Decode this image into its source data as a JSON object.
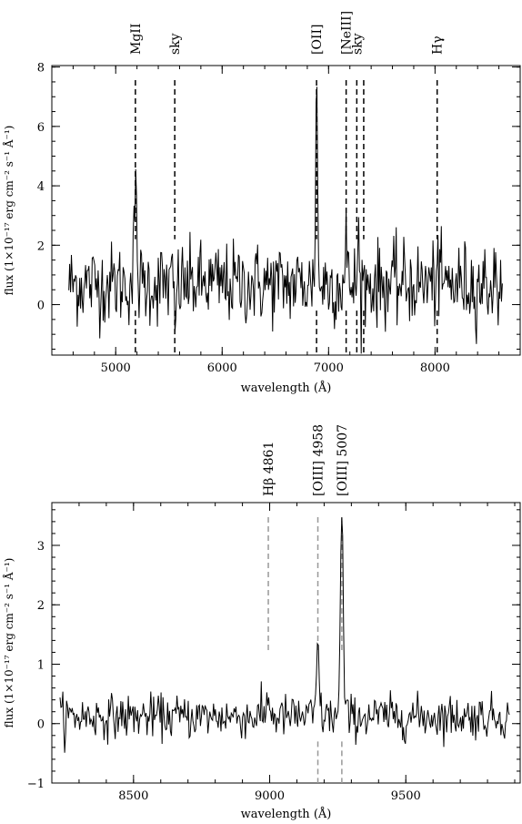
{
  "chart_data": [
    {
      "type": "line",
      "xlabel": "wavelength (Å)",
      "ylabel": "flux (1×10⁻¹⁷ erg cm⁻² s⁻¹ Å⁻¹)",
      "xlim": [
        4400,
        8800
      ],
      "ylim": [
        -1.7,
        8.05
      ],
      "xticks": [
        5000,
        6000,
        7000,
        8000
      ],
      "yticks": [
        0,
        2,
        4,
        6,
        8
      ],
      "minor_x_step": 200,
      "minor_y_step": 0.5,
      "spectrum": {
        "x_range": [
          4560,
          8640
        ],
        "baseline": 0.7,
        "noise_sigma": 0.7,
        "emission_lines": [
          {
            "center": 5185,
            "peak": 2.9,
            "sigma": 12
          },
          {
            "center": 6887,
            "peak": 6.8,
            "sigma": 9
          },
          {
            "center": 7165,
            "peak": 1.8,
            "sigma": 6
          },
          {
            "center": 7280,
            "peak": 1.8,
            "sigma": 6
          },
          {
            "center": 8020,
            "peak": 1.2,
            "sigma": 6
          }
        ],
        "absorption_features": [
          {
            "center": 5560,
            "depth": 1.6,
            "sigma": 8
          }
        ]
      },
      "markers": [
        {
          "x": 5185,
          "label": "MgII",
          "upper_style": "dashed",
          "lower_style": "dashed",
          "color": "#000000"
        },
        {
          "x": 5555,
          "label": "sky",
          "upper_style": "dashed",
          "lower_style": "dashed",
          "color": "#000000"
        },
        {
          "x": 6887,
          "label": "[OII]",
          "upper_style": "dashed",
          "lower_style": "dashed",
          "color": "#000000"
        },
        {
          "x": 7165,
          "label": "[NeIII]",
          "upper_style": "dashed",
          "lower_style": "dashed",
          "color": "#000000"
        },
        {
          "x": 7265,
          "label": "sky",
          "upper_style": "dashed",
          "lower_style": "dashed",
          "color": "#000000"
        },
        {
          "x": 7330,
          "label": "",
          "upper_style": "dashed",
          "lower_style": "dashed",
          "color": "#000000"
        },
        {
          "x": 8020,
          "label": "Hγ",
          "upper_style": "dashed",
          "lower_style": "dashed",
          "color": "#000000"
        }
      ]
    },
    {
      "type": "line",
      "xlabel": "wavelength (Å)",
      "ylabel": "flux (1×10⁻¹⁷ erg cm⁻² s⁻¹ Å⁻¹)",
      "xlim": [
        8200,
        9920
      ],
      "ylim": [
        -1.0,
        3.72
      ],
      "xticks": [
        8500,
        9000,
        9500
      ],
      "yticks": [
        -1,
        0,
        1,
        2,
        3
      ],
      "minor_x_step": 100,
      "minor_y_step": 0.2,
      "spectrum": {
        "x_range": [
          8230,
          9880
        ],
        "baseline": 0.12,
        "noise_sigma": 0.18,
        "emission_lines": [
          {
            "center": 8995,
            "peak": 0.45,
            "sigma": 4
          },
          {
            "center": 9177,
            "peak": 1.15,
            "sigma": 5
          },
          {
            "center": 9265,
            "peak": 3.42,
            "sigma": 5
          }
        ],
        "absorption_features": []
      },
      "markers": [
        {
          "x": 8995,
          "label": "Hβ 4861",
          "upper_style": "dashed",
          "lower_style": "none",
          "color": "#999999"
        },
        {
          "x": 9177,
          "label": "[OIII] 4958",
          "upper_style": "dashed",
          "lower_style": "dashed",
          "color": "#999999"
        },
        {
          "x": 9265,
          "label": "[OIII] 5007",
          "upper_style": "dashed",
          "lower_style": "dashed",
          "color": "#999999"
        }
      ]
    }
  ]
}
